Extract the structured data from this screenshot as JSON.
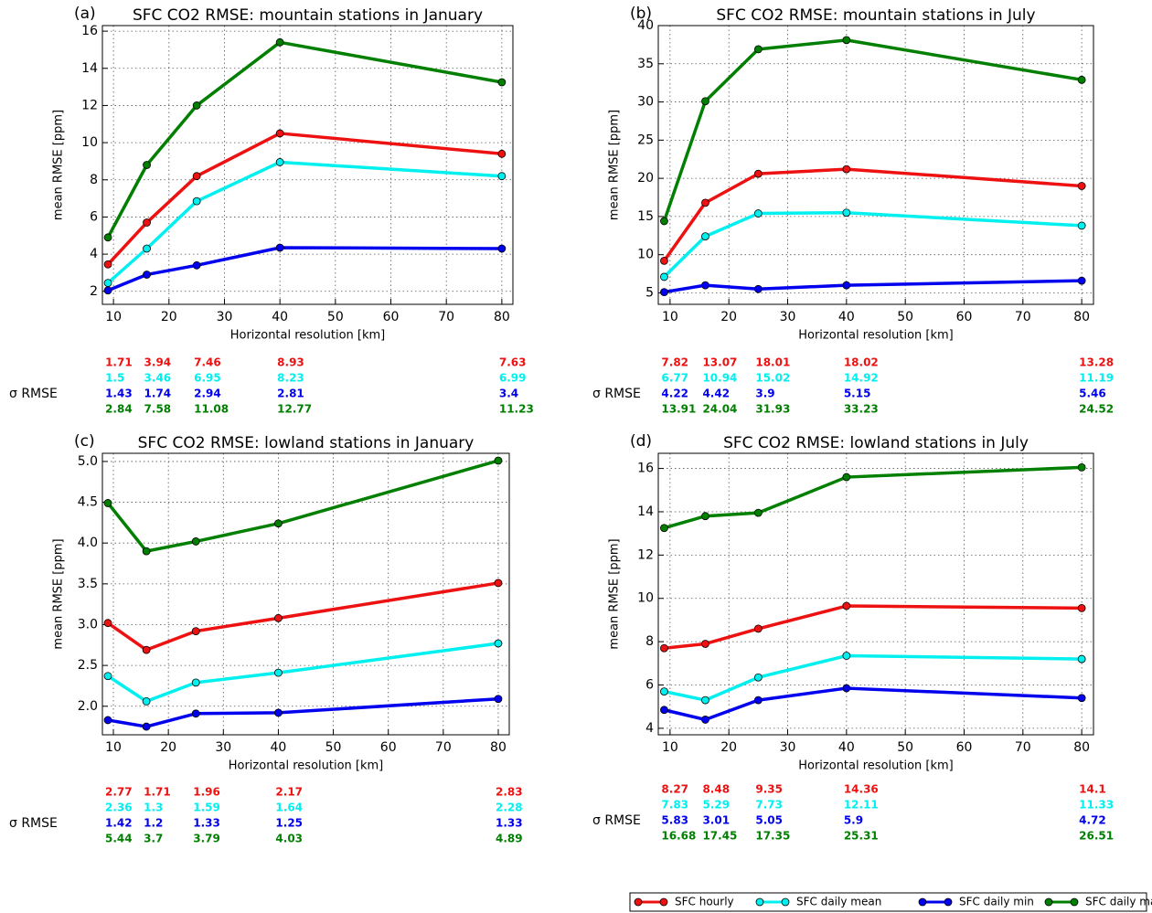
{
  "chart_data": [
    {
      "type": "line",
      "panel_label": "(a)",
      "title": "SFC CO2 RMSE: mountain stations in January",
      "xlabel": "Horizontal resolution [km]",
      "ylabel": "mean RMSE [ppm]",
      "sigma_label": "σ RMSE",
      "x": [
        9,
        16,
        25,
        40,
        80
      ],
      "xlim": [
        8,
        82
      ],
      "xticks": [
        10,
        20,
        30,
        40,
        50,
        60,
        70,
        80
      ],
      "ylim": [
        1.3,
        16.3
      ],
      "yticks": [
        2,
        4,
        6,
        8,
        10,
        12,
        14,
        16
      ],
      "grid": true,
      "series": [
        {
          "values": [
            3.45,
            5.7,
            8.2,
            10.5,
            9.4
          ],
          "sigma_values": [
            1.71,
            3.94,
            7.46,
            8.93,
            7.63
          ]
        },
        {
          "values": [
            2.45,
            4.3,
            6.85,
            8.95,
            8.2
          ],
          "sigma_values": [
            1.5,
            3.46,
            6.95,
            8.23,
            6.99
          ]
        },
        {
          "values": [
            2.05,
            2.9,
            3.4,
            4.35,
            4.3
          ],
          "sigma_values": [
            1.43,
            1.74,
            2.94,
            2.81,
            3.4
          ]
        },
        {
          "values": [
            4.9,
            8.8,
            12.0,
            15.4,
            13.25
          ],
          "sigma_values": [
            2.84,
            7.58,
            11.08,
            12.77,
            11.23
          ]
        }
      ]
    },
    {
      "type": "line",
      "panel_label": "(b)",
      "title": "SFC CO2 RMSE: mountain stations in July",
      "xlabel": "Horizontal resolution [km]",
      "ylabel": "mean RMSE [ppm]",
      "sigma_label": "σ RMSE",
      "x": [
        9,
        16,
        25,
        40,
        80
      ],
      "xlim": [
        8,
        82
      ],
      "xticks": [
        10,
        20,
        30,
        40,
        50,
        60,
        70,
        80
      ],
      "ylim": [
        3.5,
        40
      ],
      "yticks": [
        5,
        10,
        15,
        20,
        25,
        30,
        35,
        40
      ],
      "grid": true,
      "series": [
        {
          "values": [
            9.2,
            16.8,
            20.6,
            21.2,
            19.0
          ],
          "sigma_values": [
            7.82,
            13.07,
            18.01,
            18.02,
            13.28
          ]
        },
        {
          "values": [
            7.1,
            12.4,
            15.4,
            15.5,
            13.8
          ],
          "sigma_values": [
            6.77,
            10.94,
            15.02,
            14.92,
            11.19
          ]
        },
        {
          "values": [
            5.1,
            6.0,
            5.5,
            6.0,
            6.6
          ],
          "sigma_values": [
            4.22,
            4.42,
            3.9,
            5.15,
            5.46
          ]
        },
        {
          "values": [
            14.4,
            30.1,
            36.9,
            38.1,
            32.9
          ],
          "sigma_values": [
            13.91,
            24.04,
            31.93,
            33.23,
            24.52
          ]
        }
      ]
    },
    {
      "type": "line",
      "panel_label": "(c)",
      "title": "SFC CO2 RMSE: lowland stations in January",
      "xlabel": "Horizontal resolution [km]",
      "ylabel": "mean RMSE [ppm]",
      "sigma_label": "σ RMSE",
      "x": [
        9,
        16,
        25,
        40,
        80
      ],
      "xlim": [
        8,
        82
      ],
      "xticks": [
        10,
        20,
        30,
        40,
        50,
        60,
        70,
        80
      ],
      "ylim": [
        1.65,
        5.1
      ],
      "yticks": [
        {
          "value": 2,
          "label": "2.0"
        },
        2.5,
        {
          "value": 3,
          "label": "3.0"
        },
        3.5,
        {
          "value": 4,
          "label": "4.0"
        },
        4.5,
        {
          "value": 5,
          "label": "5.0"
        }
      ],
      "grid": true,
      "series": [
        {
          "values": [
            3.02,
            2.69,
            2.92,
            3.08,
            3.51
          ],
          "sigma_values": [
            2.77,
            1.71,
            1.96,
            2.17,
            2.83
          ]
        },
        {
          "values": [
            2.37,
            2.06,
            2.29,
            2.41,
            2.77
          ],
          "sigma_values": [
            2.36,
            1.3,
            1.59,
            1.64,
            2.28
          ]
        },
        {
          "values": [
            1.83,
            1.75,
            1.91,
            1.92,
            2.09
          ],
          "sigma_values": [
            1.42,
            1.2,
            1.33,
            1.25,
            1.33
          ]
        },
        {
          "values": [
            4.49,
            3.9,
            4.02,
            4.24,
            5.01
          ],
          "sigma_values": [
            5.44,
            3.7,
            3.79,
            4.03,
            4.89
          ]
        }
      ]
    },
    {
      "type": "line",
      "panel_label": "(d)",
      "title": "SFC CO2 RMSE: lowland stations in July",
      "xlabel": "Horizontal resolution [km]",
      "ylabel": "mean RMSE [ppm]",
      "sigma_label": "σ RMSE",
      "x": [
        9,
        16,
        25,
        40,
        80
      ],
      "xlim": [
        8,
        82
      ],
      "xticks": [
        10,
        20,
        30,
        40,
        50,
        60,
        70,
        80
      ],
      "ylim": [
        3.7,
        16.7
      ],
      "yticks": [
        4,
        6,
        8,
        10,
        12,
        14,
        16
      ],
      "grid": true,
      "series": [
        {
          "values": [
            7.7,
            7.9,
            8.6,
            9.65,
            9.55
          ],
          "sigma_values": [
            8.27,
            8.48,
            9.35,
            14.36,
            14.1
          ]
        },
        {
          "values": [
            5.7,
            5.3,
            6.35,
            7.35,
            7.2
          ],
          "sigma_values": [
            7.83,
            5.29,
            7.73,
            12.11,
            11.33
          ]
        },
        {
          "values": [
            4.85,
            4.4,
            5.3,
            5.85,
            5.4
          ],
          "sigma_values": [
            5.83,
            3.01,
            5.05,
            5.9,
            4.72
          ]
        },
        {
          "values": [
            13.25,
            13.8,
            13.95,
            15.6,
            16.05
          ],
          "sigma_values": [
            16.68,
            17.45,
            17.35,
            25.31,
            26.51
          ]
        }
      ]
    }
  ],
  "legend": [
    {
      "name": "SFC hourly",
      "color": "#ee1111"
    },
    {
      "name": "SFC daily mean",
      "color": "#00f0f0"
    },
    {
      "name": "SFC daily min",
      "color": "#0000ee"
    },
    {
      "name": "SFC daily max",
      "color": "#007f00"
    }
  ]
}
